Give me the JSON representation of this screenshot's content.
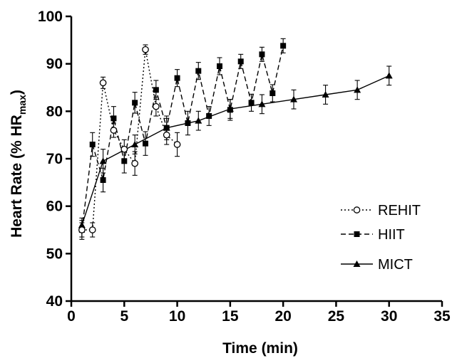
{
  "chart_data": {
    "type": "line",
    "xlabel": "Time (min)",
    "ylabel": {
      "main": "Heart Rate (% HR",
      "subscript": "max",
      "close": ")"
    },
    "xlim": [
      0,
      35
    ],
    "ylim": [
      40,
      100
    ],
    "xticks": [
      "0",
      "5",
      "10",
      "15",
      "20",
      "25",
      "30",
      "35"
    ],
    "yticks": [
      "40",
      "50",
      "60",
      "70",
      "80",
      "90",
      "100"
    ],
    "grid": false,
    "legend_position": "bottom-right",
    "series": [
      {
        "name": "REHIT",
        "line_style": "dotted",
        "marker": "open-circle",
        "points": [
          {
            "x": 1,
            "y": 55,
            "err": 1.5
          },
          {
            "x": 2,
            "y": 55,
            "err": 1.5
          },
          {
            "x": 3,
            "y": 86,
            "err": 1.2
          },
          {
            "x": 4,
            "y": 76,
            "err": 1.5
          },
          {
            "x": 5,
            "y": 72,
            "err": 2.0
          },
          {
            "x": 6,
            "y": 69,
            "err": 2.5
          },
          {
            "x": 7,
            "y": 93,
            "err": 1.0
          },
          {
            "x": 8,
            "y": 81,
            "err": 2.0
          },
          {
            "x": 9,
            "y": 75,
            "err": 2.0
          },
          {
            "x": 10,
            "y": 73,
            "err": 2.5
          }
        ]
      },
      {
        "name": "HIIT",
        "line_style": "dashed",
        "marker": "filled-square",
        "points": [
          {
            "x": 1,
            "y": 55,
            "err": 2.0
          },
          {
            "x": 2,
            "y": 73,
            "err": 2.5
          },
          {
            "x": 3,
            "y": 65.5,
            "err": 2.5
          },
          {
            "x": 4,
            "y": 78.5,
            "err": 2.5
          },
          {
            "x": 5,
            "y": 69.5,
            "err": 2.5
          },
          {
            "x": 6,
            "y": 81.8,
            "err": 2.2
          },
          {
            "x": 7,
            "y": 73.2,
            "err": 2.5
          },
          {
            "x": 8,
            "y": 84.5,
            "err": 2.0
          },
          {
            "x": 9,
            "y": 76.5,
            "err": 2.5
          },
          {
            "x": 10,
            "y": 87,
            "err": 1.8
          },
          {
            "x": 11,
            "y": 77.5,
            "err": 2.5
          },
          {
            "x": 12,
            "y": 88.5,
            "err": 1.8
          },
          {
            "x": 13,
            "y": 79,
            "err": 2.0
          },
          {
            "x": 14,
            "y": 89.5,
            "err": 1.8
          },
          {
            "x": 15,
            "y": 80.3,
            "err": 2.2
          },
          {
            "x": 16,
            "y": 90.5,
            "err": 1.5
          },
          {
            "x": 17,
            "y": 81.8,
            "err": 1.8
          },
          {
            "x": 18,
            "y": 92,
            "err": 1.5
          },
          {
            "x": 19,
            "y": 83.8,
            "err": 1.8
          },
          {
            "x": 20,
            "y": 93.8,
            "err": 1.5
          }
        ]
      },
      {
        "name": "MICT",
        "line_style": "solid",
        "marker": "filled-triangle",
        "points": [
          {
            "x": 1,
            "y": 56,
            "err": 1.5
          },
          {
            "x": 3,
            "y": 69.5,
            "err": 2.5
          },
          {
            "x": 6,
            "y": 73,
            "err": 2.0
          },
          {
            "x": 9,
            "y": 76.5,
            "err": 2.0
          },
          {
            "x": 12,
            "y": 78,
            "err": 2.0
          },
          {
            "x": 15,
            "y": 80.5,
            "err": 2.0
          },
          {
            "x": 18,
            "y": 81.5,
            "err": 2.0
          },
          {
            "x": 21,
            "y": 82.5,
            "err": 2.0
          },
          {
            "x": 24,
            "y": 83.5,
            "err": 2.0
          },
          {
            "x": 27,
            "y": 84.5,
            "err": 2.0
          },
          {
            "x": 30,
            "y": 87.5,
            "err": 2.0
          }
        ]
      }
    ]
  }
}
